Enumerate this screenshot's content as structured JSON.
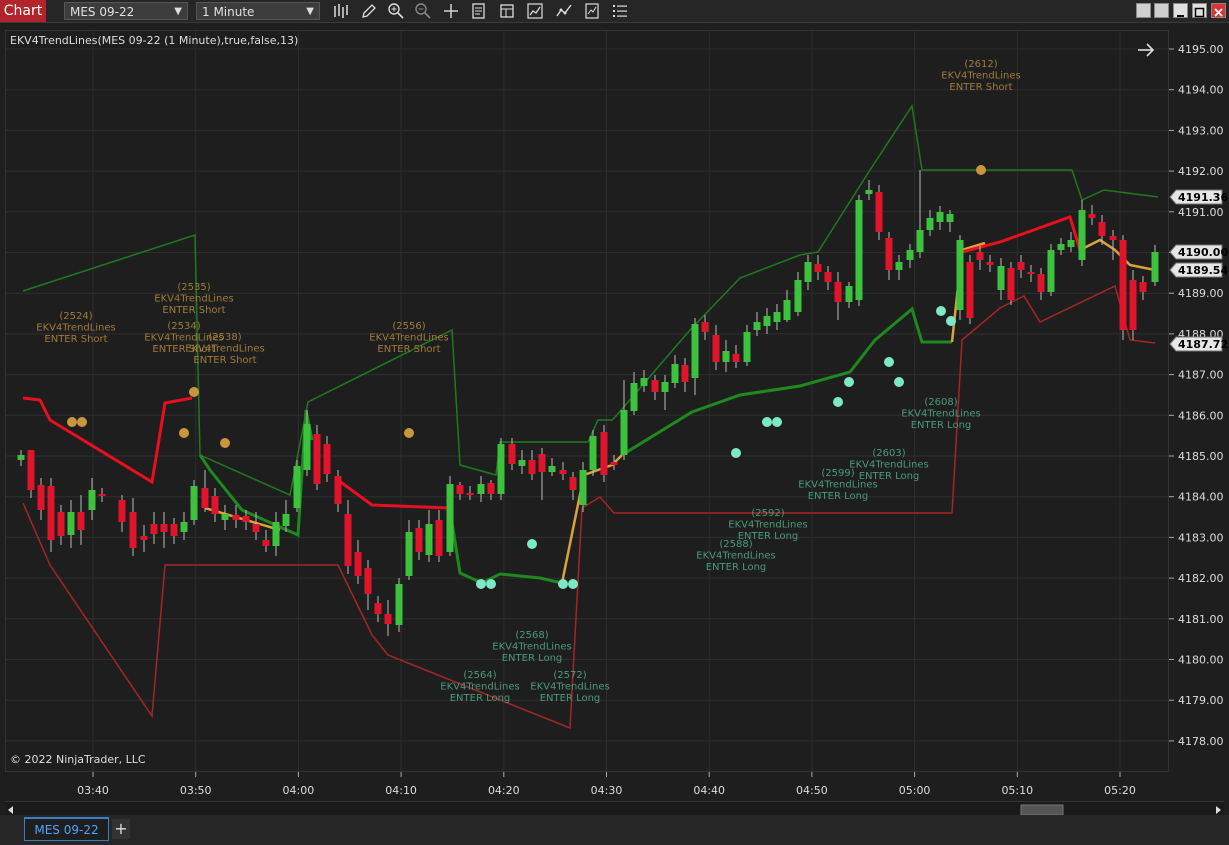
{
  "window": {
    "title": "Chart",
    "instrument": "MES 09-22",
    "interval": "1 Minute"
  },
  "toolbar_icons": [
    "bar-type-icon",
    "draw-pencil-icon",
    "zoom-in-icon",
    "zoom-out-icon",
    "crosshair-icon",
    "data-box-icon",
    "templates-icon",
    "strategies-icon",
    "indicators-icon",
    "properties-icon",
    "list-icon"
  ],
  "chart": {
    "indicator_label": "EKV4TrendLines(MES 09-22 (1 Minute),true,false,13)",
    "copyright": "© 2022 NinjaTrader, LLC",
    "price_ticks": [
      "4195.00",
      "4194.00",
      "4193.00",
      "4192.00",
      "4191.00",
      "4190.00",
      "4189.00",
      "4188.00",
      "4187.00",
      "4186.00",
      "4185.00",
      "4184.00",
      "4183.00",
      "4182.00",
      "4181.00",
      "4180.00",
      "4179.00",
      "4178.00"
    ],
    "price_flags": [
      {
        "label": "4191.36",
        "bg": "#e6e6e6",
        "fg": "#000"
      },
      {
        "label": "4190.00",
        "bg": "#e6e6e6",
        "fg": "#000"
      },
      {
        "label": "4189.54",
        "bg": "#e6e6e6",
        "fg": "#000"
      },
      {
        "label": "4187.72",
        "bg": "#e6e6e6",
        "fg": "#000"
      }
    ],
    "time_ticks": [
      "03:40",
      "03:50",
      "04:00",
      "04:10",
      "04:20",
      "04:30",
      "04:40",
      "04:50",
      "05:00",
      "05:10",
      "05:20"
    ],
    "colors": {
      "bull": "#3cc23c",
      "bear": "#e0142a",
      "upper_band": "#1f7a1f",
      "lower_band": "#a52626",
      "trail_red": "#e8101e",
      "trail_green": "#1e8a1e",
      "trail_orange": "#d9a23a",
      "short_dot": "#c9963e",
      "long_dot": "#7de8c8",
      "short_text": "#a07a3a",
      "long_text": "#4a9a7a"
    }
  },
  "annotations_short": [
    {
      "id": "(2524)",
      "name": "EKV4TrendLines",
      "action": "ENTER Short"
    },
    {
      "id": "(2535)",
      "name": "EKV4TrendLines",
      "action": "ENTER Short"
    },
    {
      "id": "(2534)",
      "name": "EKV4TrendLines",
      "action": "ENTER Short"
    },
    {
      "id": "(2538)",
      "name": "EKV4TrendLines",
      "action": "ENTER Short"
    },
    {
      "id": "(2556)",
      "name": "EKV4TrendLines",
      "action": "ENTER Short"
    },
    {
      "id": "(2612)",
      "name": "EKV4TrendLines",
      "action": "ENTER Short"
    }
  ],
  "annotations_long": [
    {
      "id": "(2568)",
      "name": "EKV4TrendLines",
      "action": "ENTER Long"
    },
    {
      "id": "(2564)",
      "name": "EKV4TrendLines",
      "action": "ENTER Long"
    },
    {
      "id": "(2572)",
      "name": "EKV4TrendLines",
      "action": "ENTER Long"
    },
    {
      "id": "(2588)",
      "name": "EKV4TrendLines",
      "action": "ENTER Long"
    },
    {
      "id": "(2592)",
      "name": "EKV4TrendLines",
      "action": "ENTER Long"
    },
    {
      "id": "(2599)",
      "name": "EKV4TrendLines",
      "action": "ENTER Long"
    },
    {
      "id": "(2603)",
      "name": "EKV4TrendLines",
      "action": "ENTER Long"
    },
    {
      "id": "(2608)",
      "name": "EKV4TrendLines",
      "action": "ENTER Long"
    }
  ],
  "tabs": [
    {
      "label": "MES 09-22"
    }
  ],
  "add_tab_label": "+"
}
